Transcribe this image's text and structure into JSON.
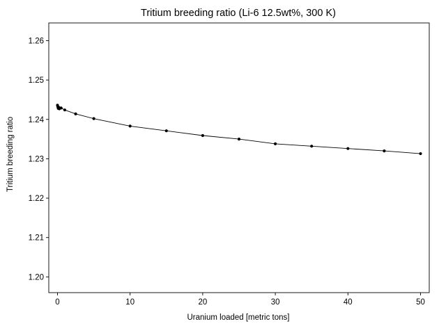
{
  "chart_data": {
    "type": "line",
    "title": "Tritium breeding ratio (Li-6 12.5wt%, 300 K)",
    "xlabel": "Uranium loaded [metric tons]",
    "ylabel": "Tritium breeding ratio",
    "xlim": [
      -1.2,
      51.2
    ],
    "ylim": [
      1.196,
      1.2645
    ],
    "xticks": [
      0,
      10,
      20,
      30,
      40,
      50
    ],
    "yticks": [
      1.2,
      1.21,
      1.22,
      1.23,
      1.24,
      1.25,
      1.26
    ],
    "xtick_labels": [
      "0",
      "10",
      "20",
      "30",
      "40",
      "50"
    ],
    "ytick_labels": [
      "1.20",
      "1.21",
      "1.22",
      "1.23",
      "1.24",
      "1.25",
      "1.26"
    ],
    "grid": false,
    "series": [
      {
        "color": "#000000",
        "marker": "dot",
        "x": [
          0.0,
          0.05,
          0.1,
          0.15,
          0.2,
          0.25,
          0.3,
          0.5,
          1.0,
          2.5,
          5,
          10,
          15,
          20,
          25,
          30,
          35,
          40,
          45,
          50
        ],
        "y": [
          1.2436,
          1.2432,
          1.2428,
          1.2431,
          1.2429,
          1.2427,
          1.2429,
          1.2429,
          1.2424,
          1.2414,
          1.2402,
          1.2383,
          1.2371,
          1.2359,
          1.235,
          1.2338,
          1.2332,
          1.2326,
          1.232,
          1.2313
        ]
      }
    ]
  }
}
